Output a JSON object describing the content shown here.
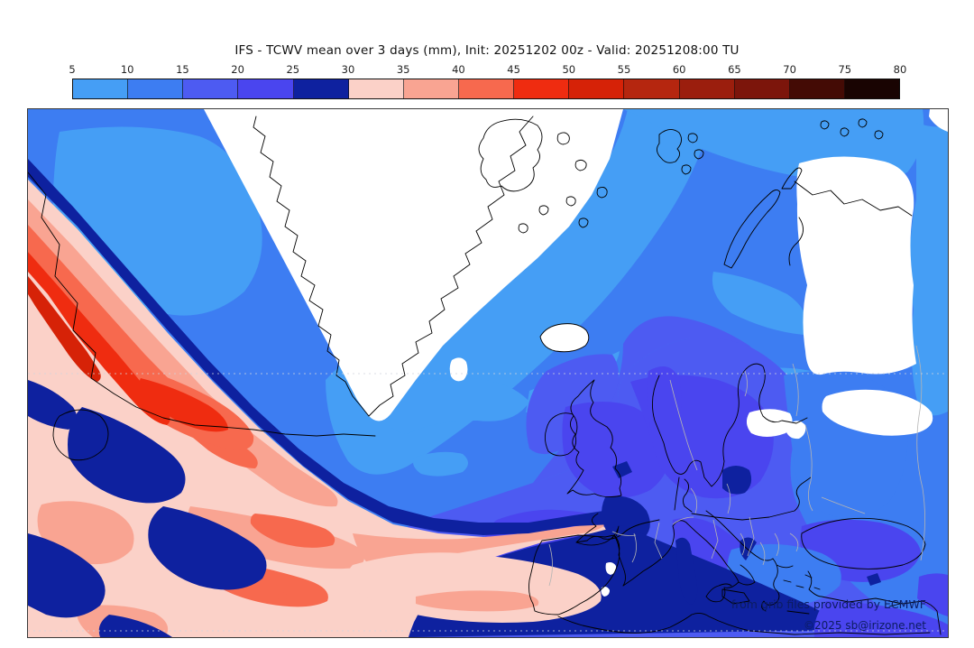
{
  "title": "IFS - TCWV mean over 3 days (mm), Init: 20251202 00z - Valid: 20251208:00 TU",
  "colorbar": {
    "unit": "mm",
    "tick_labels": [
      "5",
      "10",
      "15",
      "20",
      "25",
      "30",
      "35",
      "40",
      "45",
      "50",
      "55",
      "60",
      "65",
      "70",
      "75",
      "80"
    ],
    "segments": [
      {
        "range": "5-10",
        "color": "#459ef5"
      },
      {
        "range": "10-15",
        "color": "#3d7df2"
      },
      {
        "range": "15-20",
        "color": "#4d5bf2"
      },
      {
        "range": "20-25",
        "color": "#4a45ef"
      },
      {
        "range": "25-30",
        "color": "#0e219f"
      },
      {
        "range": "30-35",
        "color": "#fbd1c8"
      },
      {
        "range": "35-40",
        "color": "#f9a492"
      },
      {
        "range": "40-45",
        "color": "#f7694e"
      },
      {
        "range": "45-50",
        "color": "#ef2c10"
      },
      {
        "range": "50-55",
        "color": "#d62207"
      },
      {
        "range": "55-60",
        "color": "#b5260f"
      },
      {
        "range": "60-65",
        "color": "#9b1e0d"
      },
      {
        "range": "65-70",
        "color": "#7c150b"
      },
      {
        "range": "70-75",
        "color": "#440b05"
      },
      {
        "range": "75-80",
        "color": "#190402"
      }
    ]
  },
  "map": {
    "attribution_line1": "from grib files provided by ECMWF",
    "attribution_line2": "©2025 sb@irizone.net",
    "below_scale_color": "#ffffff",
    "coastline_color": "#000000",
    "border_color": "#b4b4b4"
  }
}
